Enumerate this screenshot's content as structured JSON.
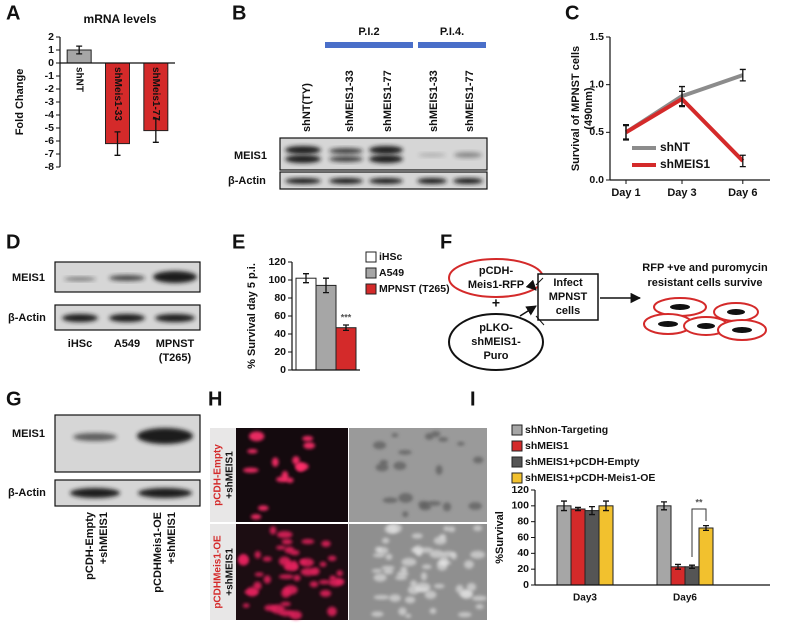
{
  "chart_data": [
    {
      "type": "bar",
      "title": "mRNA levels",
      "y_label": "Fold Change",
      "categories": [
        "shNT",
        "shMeis1-33",
        "shMeis1-77"
      ],
      "values": [
        1,
        -6.2,
        -5.2
      ],
      "errors": [
        0.3,
        0.9,
        0.9
      ],
      "colors": [
        "#a6a6a6",
        "#d42a2a",
        "#d42a2a"
      ],
      "ylim": [
        -8,
        2
      ],
      "yticks": [
        -8,
        -7,
        -6,
        -5,
        -4,
        -3,
        -2,
        -1,
        0,
        1,
        2
      ]
    },
    {
      "type": "line",
      "y_label": [
        "Survival of MPNST cells",
        "(490nm)"
      ],
      "categories": [
        "Day 1",
        "Day 3",
        "Day 6"
      ],
      "series": [
        {
          "name": "shNT",
          "color": "#8c8c8c",
          "values": [
            0.5,
            0.88,
            1.1
          ],
          "errors": [
            0.07,
            0.1,
            0.06
          ]
        },
        {
          "name": "shMEIS1",
          "color": "#d42a2a",
          "values": [
            0.5,
            0.85,
            0.2
          ],
          "errors": [
            0.08,
            0.08,
            0.06
          ]
        }
      ],
      "ylim": [
        0,
        1.5
      ],
      "yticks": [
        {
          "value": 0,
          "label": "0.0"
        },
        {
          "value": 0.5,
          "label": "0.5"
        },
        {
          "value": 1,
          "label": "1.0"
        },
        {
          "value": 1.5,
          "label": "1.5"
        }
      ]
    },
    {
      "type": "bar",
      "y_label": "% Survival day 5 p.i.",
      "annotation": "***",
      "series": [
        {
          "name": "iHSc",
          "color": "#ffffff",
          "values": [
            102
          ],
          "errors": [
            5
          ]
        },
        {
          "name": "A549",
          "color": "#a6a6a6",
          "values": [
            94
          ],
          "errors": [
            8
          ]
        },
        {
          "name": "MPNST (T265)",
          "color": "#d42a2a",
          "values": [
            47
          ],
          "errors": [
            3
          ]
        }
      ],
      "ylim": [
        0,
        120
      ],
      "yticks": [
        0,
        20,
        40,
        60,
        80,
        100,
        120
      ]
    },
    {
      "type": "bar",
      "y_label": "%Survival",
      "annotation": "**",
      "categories": [
        "Day3",
        "Day6"
      ],
      "series": [
        {
          "name": "shNon-Targeting",
          "color": "#a6a6a6",
          "values": [
            100,
            100
          ],
          "errors": [
            6,
            5
          ]
        },
        {
          "name": "shMEIS1",
          "color": "#d42a2a",
          "values": [
            96,
            23
          ],
          "errors": [
            2,
            3
          ]
        },
        {
          "name": "shMEIS1+pCDH-Empty",
          "color": "#555555",
          "values": [
            94,
            23
          ],
          "errors": [
            5,
            2
          ]
        },
        {
          "name": "shMEIS1+pCDH-Meis1-OE",
          "color": "#f2c12e",
          "values": [
            100,
            72
          ],
          "errors": [
            6,
            3
          ]
        }
      ],
      "ylim": [
        0,
        120
      ],
      "yticks": [
        0,
        20,
        40,
        60,
        80,
        100,
        120
      ]
    }
  ],
  "panel_labels": [
    "A",
    "B",
    "C",
    "D",
    "E",
    "F",
    "G",
    "H",
    "I"
  ],
  "blot_b": {
    "groups": [
      "P.I.2",
      "P.I.4."
    ],
    "lanes": [
      "shNT(TY)",
      "shMEIS1-33",
      "shMEIS1-77",
      "shMEIS1-33",
      "shMEIS1-77"
    ],
    "rows": [
      "MEIS1",
      "β-Actin"
    ]
  },
  "blot_d": {
    "lanes": [
      [
        "iHSc"
      ],
      [
        "A549"
      ],
      [
        "MPNST",
        "(T265)"
      ]
    ],
    "rows": [
      "MEIS1",
      "β-Actin"
    ]
  },
  "diagram_f": {
    "nodes": [
      [
        "pCDH-",
        "Meis1-RFP"
      ],
      [
        "+"
      ],
      [
        "pLKO-",
        "shMEIS1-",
        "Puro"
      ],
      [
        "Infect",
        "MPNST",
        "cells"
      ],
      [
        "RFP +ve and puromycin",
        "resistant cells survive"
      ]
    ]
  },
  "blot_g": {
    "lanes": [
      [
        "pCDH-Empty",
        "+shMEIS1"
      ],
      [
        "pCDHMeis1-OE",
        "+shMEIS1"
      ]
    ],
    "rows": [
      "MEIS1",
      "β-Actin"
    ]
  },
  "images_h": {
    "labels": [
      [
        "pCDH-Empty",
        "+shMEIS1"
      ],
      [
        "pCDHMeis1-OE",
        "+shMEIS1"
      ]
    ]
  }
}
